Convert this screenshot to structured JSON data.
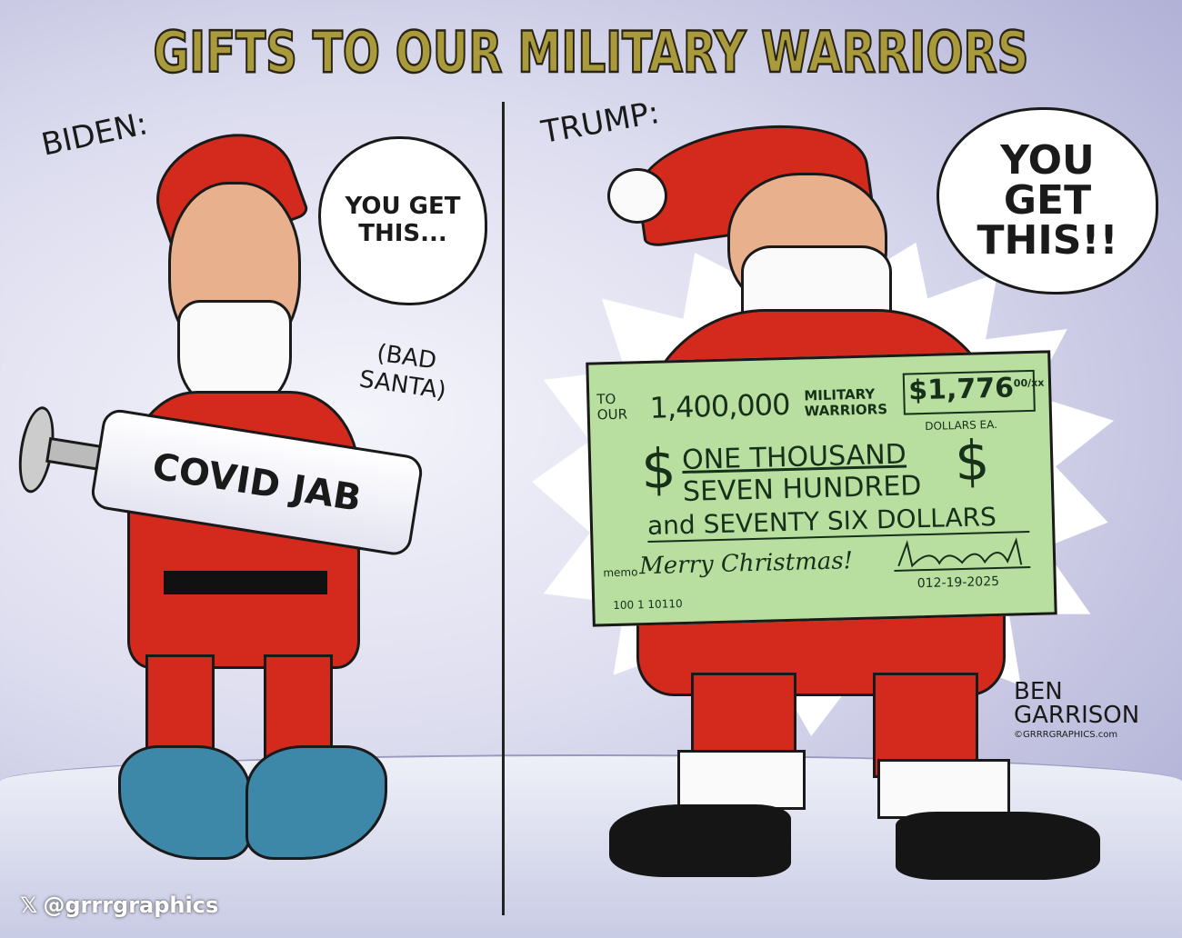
{
  "title": "GIFTS TO OUR MILITARY WARRIORS",
  "left_panel": {
    "label": "BIDEN:",
    "speech": "YOU GET THIS...",
    "aside": "(BAD SANTA)",
    "syringe_label": "COVID JAB"
  },
  "right_panel": {
    "label": "TRUMP:",
    "speech": "YOU GET THIS!!",
    "check": {
      "payee_prefix": "TO OUR",
      "payee_count": "1,400,000",
      "payee_name": "MILITARY WARRIORS",
      "amount": "$1,776",
      "cents": "00/xx",
      "amount_note": "DOLLARS EA.",
      "written_line1": "ONE THOUSAND",
      "written_line2": "SEVEN HUNDRED",
      "written_line3": "and SEVENTY SIX DOLLARS",
      "memo_label": "memo",
      "memo": "Merry Christmas!",
      "date": "012-19-2025",
      "routing": "100 1 10110"
    }
  },
  "signature": {
    "artist_line1": "BEN",
    "artist_line2": "GARRISON",
    "website": "©GRRRGRAPHICS.com"
  },
  "watermark": "@grrrgraphics",
  "colors": {
    "title": "#a99a3c",
    "santa_red": "#d42a1e",
    "check_green": "#b9dfa0",
    "background": "#dcdcef"
  }
}
